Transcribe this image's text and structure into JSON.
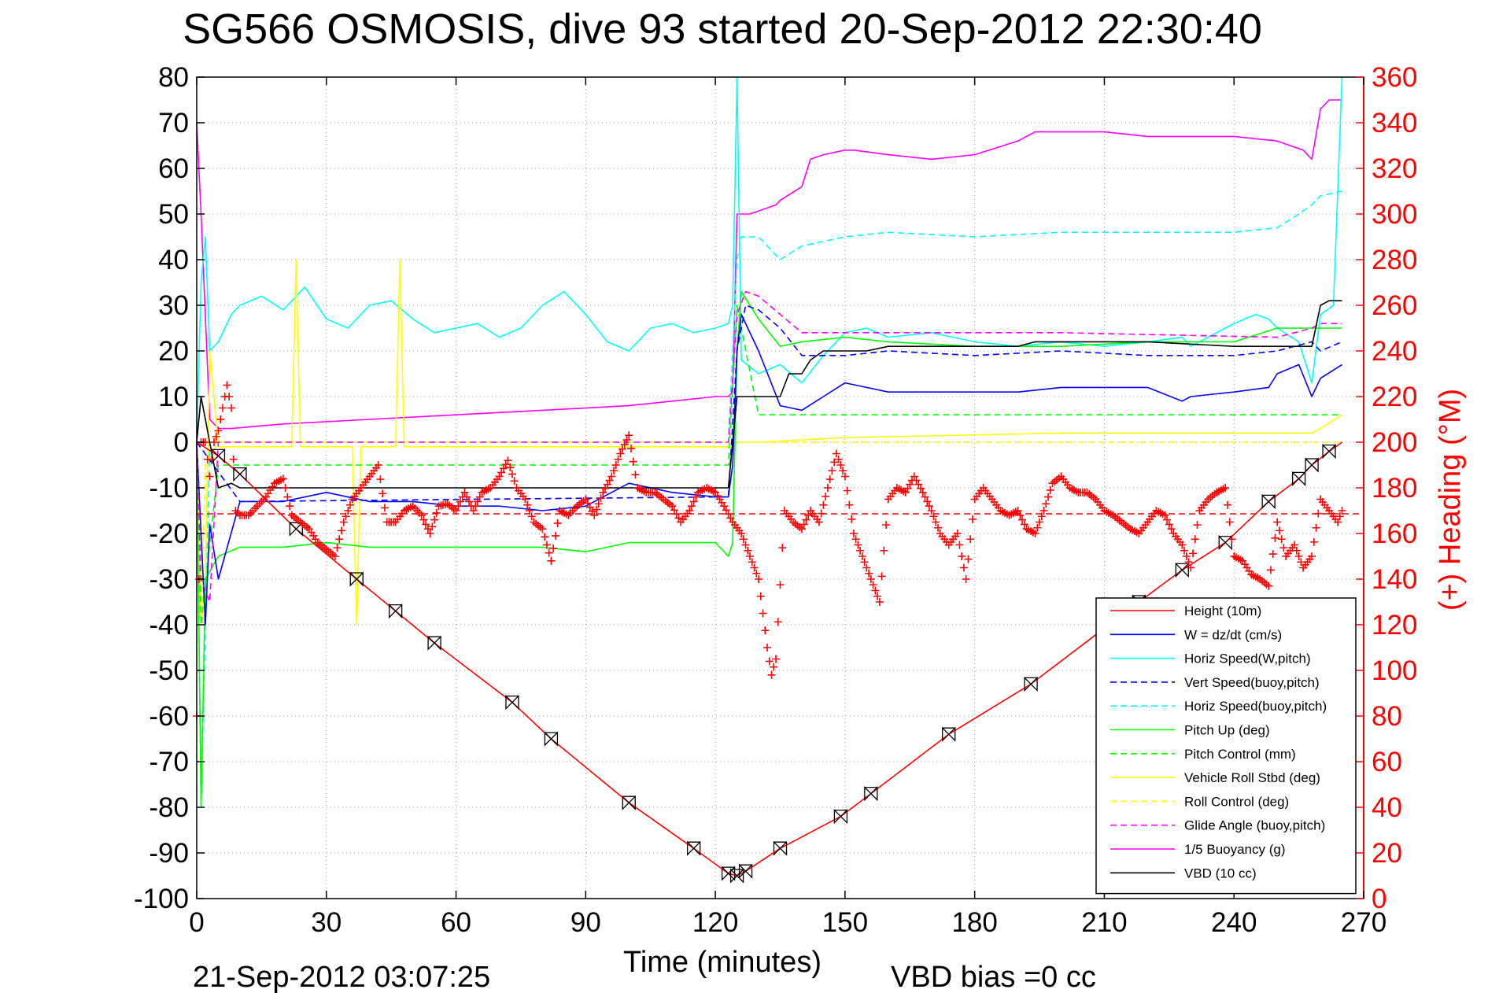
{
  "chart_data": {
    "type": "line",
    "title": "SG566 OSMOSIS, dive 93 started 20-Sep-2012 22:30:40",
    "xlabel": "Time (minutes)",
    "ylabel_right": "(+) Heading (°M)",
    "xlim": [
      0,
      270
    ],
    "ylim_left": [
      -100,
      80
    ],
    "ylim_right": [
      0,
      360
    ],
    "x_ticks": [
      "0",
      "30",
      "60",
      "90",
      "120",
      "150",
      "180",
      "210",
      "240",
      "270"
    ],
    "y_ticks_left": [
      "80",
      "70",
      "60",
      "50",
      "40",
      "30",
      "20",
      "10",
      "0",
      "-10",
      "-20",
      "-30",
      "-40",
      "-50",
      "-60",
      "-70",
      "-80",
      "-90",
      "-100"
    ],
    "y_ticks_right": [
      "360",
      "340",
      "320",
      "300",
      "280",
      "260",
      "240",
      "220",
      "200",
      "180",
      "160",
      "140",
      "120",
      "100",
      "80",
      "60",
      "40",
      "20",
      "0"
    ],
    "grid": true,
    "legend_position": "lower-right",
    "footer_left": "21-Sep-2012 03:07:25",
    "footer_right": "VBD bias =0 cc",
    "series": [
      {
        "name": "Height (10m)",
        "color": "#ff0000",
        "style": "solid",
        "x": [
          0,
          5,
          10,
          23,
          37,
          46,
          55,
          73,
          82,
          100,
          115,
          123,
          125,
          127,
          135,
          149,
          156,
          174,
          193,
          218,
          228,
          238,
          248,
          255,
          258,
          262,
          265
        ],
        "y": [
          0,
          -3,
          -7,
          -19,
          -30,
          -37,
          -44,
          -57,
          -65,
          -79,
          -89,
          -94.5,
          -95,
          -94,
          -89,
          -82,
          -77,
          -64,
          -53,
          -35,
          -28,
          -22,
          -13,
          -8,
          -5,
          -2,
          0
        ]
      },
      {
        "name": "W = dz/dt (cm/s)",
        "color": "#0000ff",
        "style": "solid",
        "x": [
          0,
          1,
          2,
          3,
          5,
          10,
          20,
          30,
          40,
          50,
          60,
          70,
          80,
          90,
          100,
          110,
          120,
          123,
          124,
          125,
          126,
          130,
          135,
          140,
          145,
          150,
          155,
          160,
          170,
          180,
          190,
          200,
          210,
          220,
          228,
          230,
          240,
          248,
          250,
          255,
          258,
          260,
          265
        ],
        "y": [
          0,
          -20,
          -40,
          -18,
          -30,
          -13,
          -13,
          -11,
          -13,
          -13,
          -14,
          -14,
          -15,
          -14,
          -9,
          -11,
          -12,
          -12,
          -5,
          20,
          28,
          20,
          8,
          7,
          10,
          13,
          12,
          11,
          11,
          11,
          11,
          12,
          12,
          12,
          9,
          10,
          11,
          12,
          15,
          17,
          10,
          14,
          17
        ]
      },
      {
        "name": "Horiz Speed(W,pitch)",
        "color": "#00ffff",
        "style": "solid",
        "x": [
          0,
          1,
          2,
          3,
          5,
          8,
          10,
          15,
          20,
          25,
          30,
          35,
          40,
          45,
          50,
          55,
          60,
          65,
          70,
          75,
          80,
          85,
          90,
          95,
          100,
          105,
          110,
          115,
          120,
          123,
          124,
          125,
          126,
          130,
          135,
          140,
          145,
          150,
          155,
          160,
          170,
          180,
          190,
          200,
          210,
          220,
          228,
          230,
          240,
          245,
          248,
          250,
          255,
          258,
          260,
          263,
          265
        ],
        "y": [
          0,
          35,
          45,
          20,
          22,
          28,
          30,
          32,
          29,
          34,
          27,
          25,
          30,
          31,
          27,
          24,
          25,
          26,
          23,
          25,
          30,
          33,
          28,
          22,
          20,
          25,
          26,
          24,
          25,
          26,
          30,
          80,
          18,
          15,
          17,
          13,
          19,
          24,
          25,
          23,
          24,
          22,
          21,
          22,
          21,
          22,
          23,
          21,
          26,
          28,
          27,
          25,
          22,
          13,
          28,
          30,
          80
        ]
      },
      {
        "name": "Vert Speed(buoy,pitch)",
        "color": "#0000ff",
        "style": "dashed",
        "x": [
          0,
          10,
          120,
          123,
          125,
          127,
          130,
          135,
          140,
          150,
          160,
          180,
          200,
          220,
          240,
          250,
          258,
          260,
          265
        ],
        "y": [
          0,
          -13,
          -12,
          -12,
          20,
          30,
          29,
          25,
          19,
          19,
          20,
          19,
          20,
          19,
          19,
          20,
          22,
          20,
          22
        ]
      },
      {
        "name": "Horiz Speed(buoy,pitch)",
        "color": "#00ffff",
        "style": "dashed",
        "x": [
          0,
          1,
          3,
          123,
          125,
          126,
          130,
          135,
          140,
          150,
          160,
          180,
          200,
          220,
          240,
          250,
          255,
          258,
          260,
          265
        ],
        "y": [
          0,
          -80,
          0,
          0,
          40,
          45,
          45,
          40,
          43,
          45,
          46,
          45,
          46,
          46,
          46,
          47,
          50,
          52,
          54,
          55
        ]
      },
      {
        "name": "Pitch Up (deg)",
        "color": "#00ff00",
        "style": "solid",
        "x": [
          0,
          1,
          2,
          5,
          10,
          20,
          30,
          40,
          50,
          60,
          70,
          80,
          90,
          100,
          110,
          120,
          123,
          124,
          125,
          126,
          130,
          135,
          140,
          150,
          160,
          180,
          200,
          220,
          240,
          250,
          258,
          260,
          265
        ],
        "y": [
          0,
          -80,
          -30,
          -25,
          -23,
          -23,
          -22,
          -23,
          -23,
          -23,
          -23,
          -23,
          -24,
          -22,
          -22,
          -22,
          -25,
          -22,
          20,
          33,
          27,
          21,
          22,
          23,
          22,
          21,
          21,
          22,
          22,
          25,
          25,
          25,
          25
        ]
      },
      {
        "name": "Pitch Control (mm)",
        "color": "#00ff00",
        "style": "dashed",
        "x": [
          0,
          1,
          5,
          120,
          123,
          125,
          126,
          130,
          135,
          140,
          150,
          160,
          200,
          240,
          258,
          260,
          265
        ],
        "y": [
          0,
          -40,
          -5,
          -5,
          -5,
          30,
          25,
          6,
          6,
          6,
          6,
          6,
          6,
          6,
          6,
          6,
          6
        ]
      },
      {
        "name": "Vehicle Roll Stbd (deg)",
        "color": "#ffff00",
        "style": "solid",
        "x": [
          0,
          1,
          2,
          3,
          5,
          10,
          22,
          23,
          24,
          36,
          37,
          38,
          46,
          47,
          48,
          120,
          123,
          124,
          125,
          130,
          150,
          200,
          240,
          258,
          260,
          265
        ],
        "y": [
          0,
          -40,
          -30,
          20,
          -1,
          -1,
          -1,
          40,
          -1,
          -1,
          -40,
          -1,
          -1,
          40,
          -1,
          -1,
          -1,
          -1,
          0,
          0,
          1,
          2,
          2,
          2,
          3,
          6
        ]
      },
      {
        "name": "Roll Control (deg)",
        "color": "#ffff00",
        "style": "dashed",
        "x": [
          0,
          1,
          2,
          5,
          120,
          125,
          130,
          150,
          200,
          260,
          265
        ],
        "y": [
          0,
          -40,
          -5,
          0,
          0,
          0,
          0,
          0,
          0,
          0,
          0
        ]
      },
      {
        "name": "Glide Angle (buoy,pitch)",
        "color": "#ff00ff",
        "style": "dashed",
        "x": [
          0,
          1,
          3,
          5,
          120,
          123,
          125,
          127,
          130,
          140,
          150,
          200,
          250,
          258,
          260,
          265
        ],
        "y": [
          0,
          -30,
          -35,
          0,
          0,
          0,
          28,
          33,
          32,
          24,
          24,
          24,
          23,
          25,
          26,
          26
        ]
      },
      {
        "name": "1/5 Buoyancy (g)",
        "color": "#ff00ff",
        "style": "solid",
        "x": [
          0,
          1,
          3,
          5,
          8,
          20,
          40,
          60,
          80,
          100,
          110,
          120,
          123,
          124,
          125,
          128,
          134,
          135,
          140,
          142,
          145,
          150,
          152,
          160,
          170,
          180,
          190,
          194,
          210,
          220,
          230,
          240,
          250,
          256,
          258,
          260,
          262,
          265
        ],
        "y": [
          70,
          50,
          5,
          3,
          3,
          4,
          5,
          6,
          7,
          8,
          9,
          10,
          10,
          11,
          50,
          50,
          52,
          53,
          56,
          62,
          63,
          64,
          64,
          63,
          62,
          63,
          66,
          68,
          68,
          67,
          67,
          67,
          66,
          64,
          62,
          73,
          75,
          75
        ]
      },
      {
        "name": "VBD (10 cc)",
        "color": "#000000",
        "style": "solid",
        "x": [
          0,
          1,
          3,
          5,
          8,
          10,
          120,
          123,
          124,
          125,
          126,
          128,
          130,
          135,
          137,
          140,
          142,
          145,
          150,
          155,
          160,
          190,
          194,
          200,
          210,
          220,
          240,
          250,
          258,
          260,
          262,
          265
        ],
        "y": [
          0,
          10,
          0,
          -10,
          -9,
          -10,
          -10,
          -10,
          0,
          10,
          10,
          10,
          10,
          10,
          15,
          15,
          18,
          20,
          20,
          20,
          21,
          21,
          22,
          22,
          22,
          22,
          21,
          21,
          21,
          30,
          31,
          31
        ]
      }
    ],
    "heading_series": {
      "name": "Heading (°M)",
      "axis": "right",
      "color": "#ff0000",
      "marker": "+",
      "x": [
        0,
        1,
        2,
        3,
        4,
        5,
        6,
        7,
        8,
        9,
        10,
        12,
        14,
        16,
        18,
        20,
        22,
        24,
        26,
        28,
        30,
        32,
        34,
        36,
        38,
        40,
        42,
        44,
        46,
        48,
        50,
        52,
        54,
        56,
        58,
        60,
        62,
        64,
        66,
        68,
        70,
        72,
        74,
        76,
        78,
        80,
        82,
        84,
        86,
        88,
        90,
        92,
        94,
        96,
        98,
        100,
        102,
        104,
        106,
        108,
        110,
        112,
        114,
        116,
        118,
        120,
        122,
        124,
        126,
        128,
        130,
        132,
        133,
        134,
        136,
        138,
        140,
        142,
        144,
        146,
        148,
        150,
        152,
        154,
        156,
        158,
        160,
        162,
        164,
        166,
        168,
        170,
        172,
        174,
        176,
        178,
        180,
        182,
        184,
        186,
        188,
        190,
        192,
        194,
        196,
        198,
        200,
        202,
        204,
        206,
        208,
        210,
        212,
        214,
        216,
        218,
        220,
        222,
        224,
        226,
        228,
        230,
        232,
        234,
        236,
        238,
        240,
        242,
        244,
        246,
        248,
        250,
        252,
        254,
        256,
        258,
        260,
        262,
        264,
        265
      ],
      "y": [
        80,
        200,
        200,
        185,
        200,
        205,
        215,
        225,
        215,
        170,
        168,
        168,
        172,
        176,
        182,
        184,
        168,
        165,
        162,
        156,
        153,
        150,
        165,
        175,
        180,
        185,
        190,
        165,
        165,
        170,
        172,
        168,
        160,
        172,
        173,
        170,
        178,
        170,
        178,
        180,
        185,
        192,
        180,
        175,
        165,
        162,
        148,
        170,
        168,
        172,
        175,
        168,
        178,
        185,
        195,
        203,
        180,
        178,
        178,
        175,
        172,
        165,
        170,
        178,
        180,
        178,
        172,
        165,
        160,
        150,
        140,
        110,
        98,
        105,
        170,
        165,
        162,
        170,
        165,
        180,
        195,
        185,
        160,
        150,
        140,
        130,
        175,
        180,
        178,
        185,
        178,
        170,
        160,
        155,
        160,
        140,
        175,
        180,
        175,
        170,
        168,
        170,
        162,
        160,
        170,
        182,
        185,
        180,
        178,
        178,
        175,
        170,
        168,
        165,
        162,
        160,
        165,
        170,
        168,
        160,
        155,
        145,
        170,
        175,
        178,
        180,
        150,
        148,
        142,
        140,
        137,
        165,
        150,
        155,
        145,
        150,
        175,
        170,
        165,
        170
      ]
    }
  }
}
